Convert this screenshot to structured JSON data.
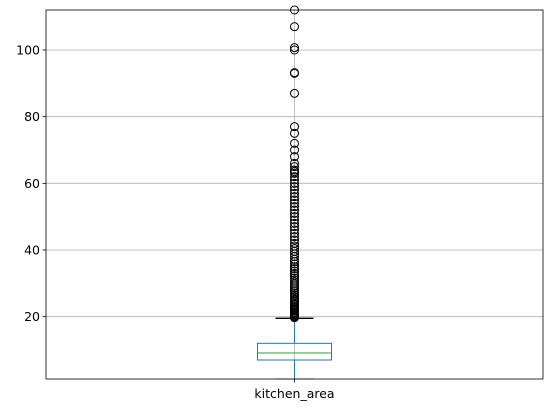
{
  "chart_data": {
    "type": "box",
    "title": "",
    "xlabel": "",
    "ylabel": "",
    "categories": [
      "kitchen_area"
    ],
    "ylim": [
      1.3,
      112
    ],
    "yticks": [
      20,
      40,
      60,
      80,
      100
    ],
    "grid": true,
    "series": [
      {
        "category": "kitchen_area",
        "min": 1.3,
        "q1": 7.0,
        "median": 9.1,
        "q3": 12.0,
        "whisker_high": 19.5,
        "outliers": [
          19.7,
          20.0,
          20.3,
          20.6,
          21.0,
          21.3,
          21.7,
          22.0,
          22.4,
          22.8,
          23.2,
          23.6,
          24.0,
          24.5,
          25.0,
          25.5,
          26.0,
          26.5,
          27.0,
          27.5,
          28.0,
          28.6,
          29.2,
          29.8,
          30.4,
          31.0,
          31.6,
          32.3,
          33.0,
          33.7,
          34.4,
          35.0,
          35.8,
          36.5,
          37.2,
          38.0,
          38.8,
          39.6,
          40.4,
          41.2,
          42.0,
          43.0,
          44.0,
          45.0,
          46.0,
          47.0,
          48.0,
          49.0,
          50.0,
          51.0,
          52.0,
          53.0,
          54.0,
          55.0,
          56.0,
          57.0,
          58.0,
          59.0,
          60.0,
          61.0,
          62.0,
          63.0,
          63.5,
          64.0,
          65.0,
          66.0,
          68.0,
          70.0,
          72.0,
          75.0,
          77.0,
          87.0,
          93.0,
          93.2,
          100.0,
          100.7,
          107.0,
          112.0
        ]
      }
    ],
    "colors": {
      "box": "#1f77b4",
      "median": "#2ca02c",
      "whisker": "#000000",
      "outlier": "#000000",
      "grid": "#b0b0b0"
    }
  }
}
